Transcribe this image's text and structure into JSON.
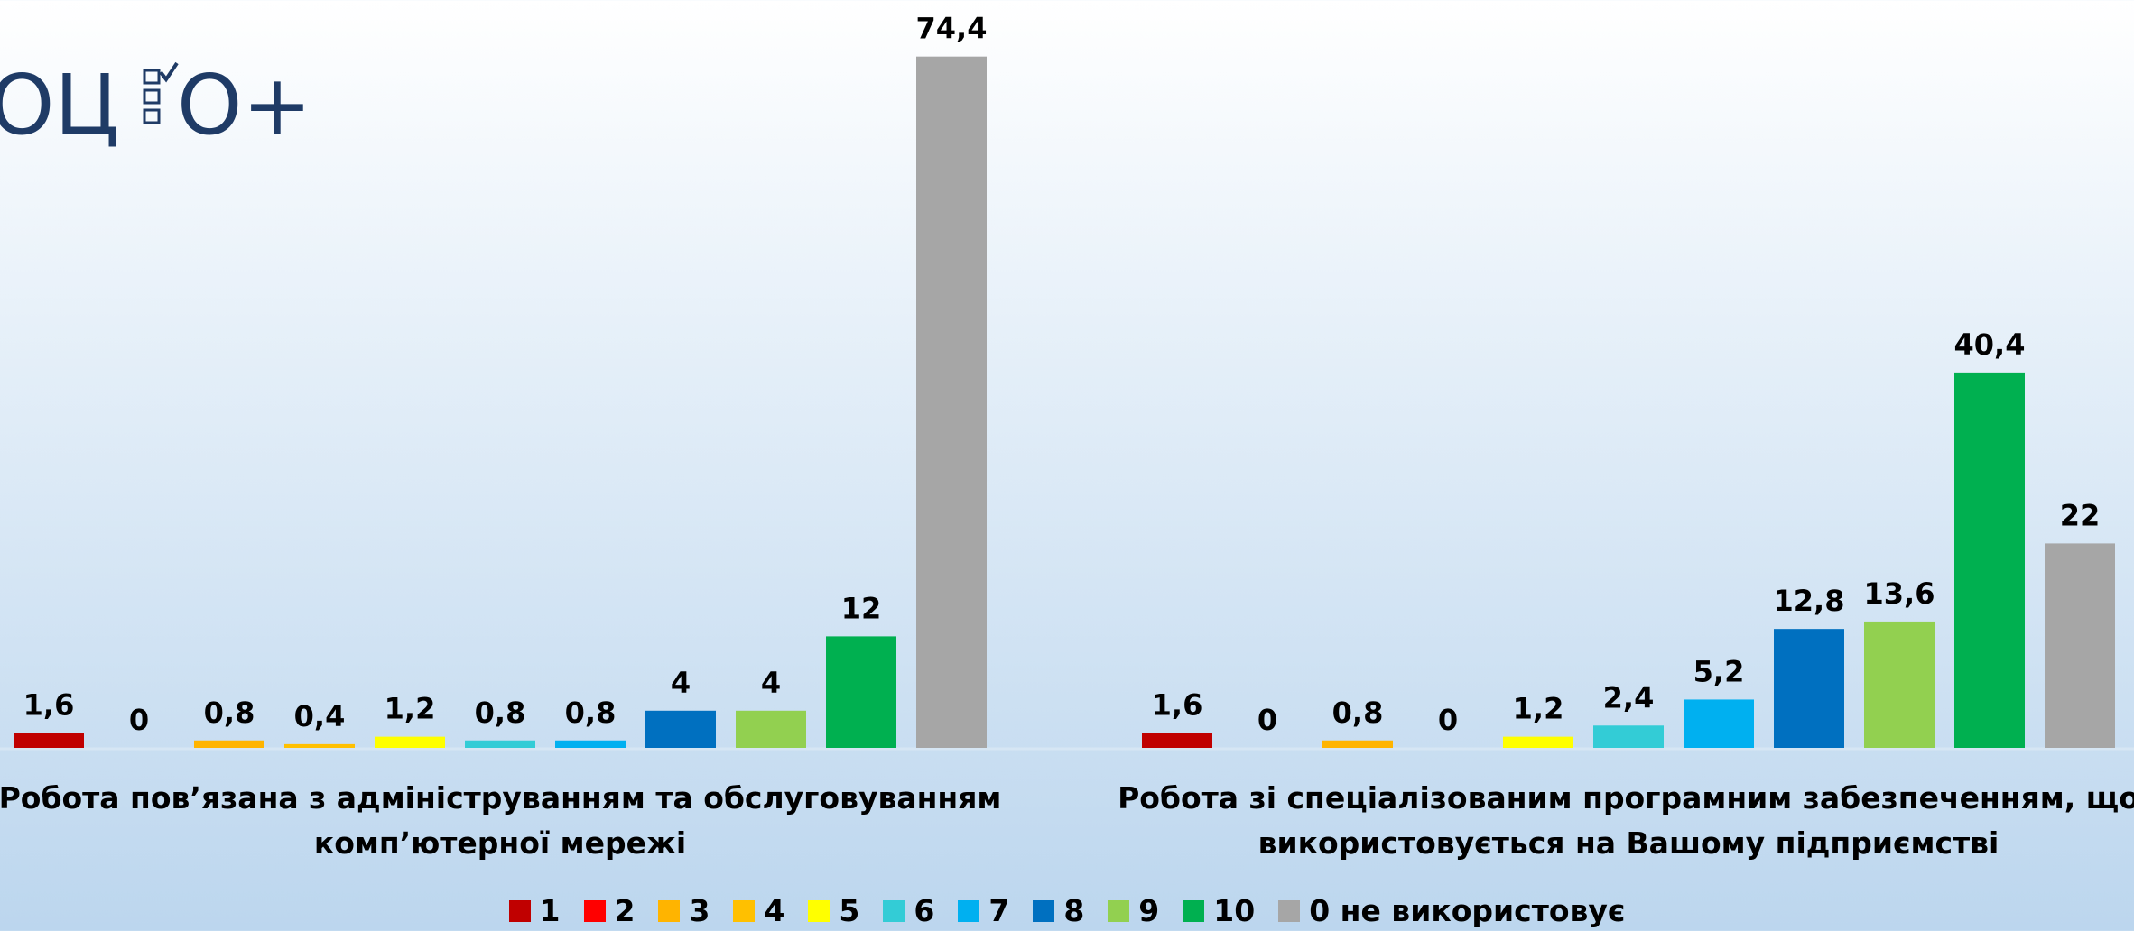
{
  "chart_data": {
    "type": "bar",
    "logo": [
      "ОЦ",
      "О+"
    ],
    "categories": [
      "Робота пов’язана з адмініструванням та обслуговуванням комп’ютерної мережі",
      "Робота зі спеціалізованим програмним забезпеченням, що використовується на Вашому підприємстві"
    ],
    "series": [
      {
        "name": "1",
        "color": "#c00000",
        "values": [
          1.6,
          1.6
        ],
        "value_labels": [
          "1,6",
          "1,6"
        ]
      },
      {
        "name": "2",
        "color": "#ff0000",
        "values": [
          0,
          0
        ],
        "value_labels": [
          "0",
          "0"
        ]
      },
      {
        "name": "3",
        "color": "#ffb400",
        "values": [
          0.8,
          0.8
        ],
        "value_labels": [
          "0,8",
          "0,8"
        ]
      },
      {
        "name": "4",
        "color": "#ffc000",
        "values": [
          0.4,
          0
        ],
        "value_labels": [
          "0,4",
          "0"
        ]
      },
      {
        "name": "5",
        "color": "#ffff00",
        "values": [
          1.2,
          1.2
        ],
        "value_labels": [
          "1,2",
          "1,2"
        ]
      },
      {
        "name": "6",
        "color": "#33ccd6",
        "values": [
          0.8,
          2.4
        ],
        "value_labels": [
          "0,8",
          "2,4"
        ]
      },
      {
        "name": "7",
        "color": "#00b0f0",
        "values": [
          0.8,
          5.2
        ],
        "value_labels": [
          "0,8",
          "5,2"
        ]
      },
      {
        "name": "8",
        "color": "#0070c0",
        "values": [
          4,
          12.8
        ],
        "value_labels": [
          "4",
          "12,8"
        ]
      },
      {
        "name": "9",
        "color": "#92d050",
        "values": [
          4,
          13.6
        ],
        "value_labels": [
          "4",
          "13,6"
        ]
      },
      {
        "name": "10",
        "color": "#00b050",
        "values": [
          12,
          40.4
        ],
        "value_labels": [
          "12",
          "40,4"
        ]
      },
      {
        "name": "0 не використовує",
        "color": "#a6a6a6",
        "values": [
          74.4,
          22
        ],
        "value_labels": [
          "74,4",
          "22"
        ]
      }
    ],
    "ylim": [
      0,
      80
    ]
  }
}
